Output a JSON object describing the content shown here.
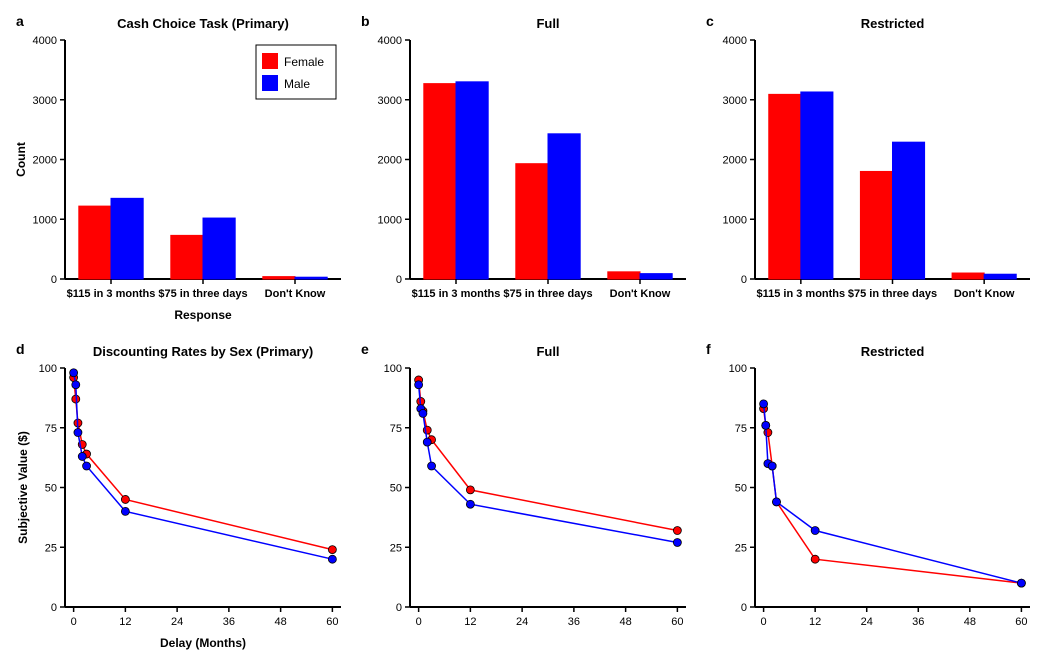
{
  "global": {
    "background_color": "#ffffff",
    "axis_color": "#000000",
    "tick_color": "#000000",
    "text_color": "#000000",
    "font_family": "Arial, sans-serif",
    "panel_label_fontsize": 14,
    "panel_label_fontweight": "bold",
    "title_fontsize": 13,
    "title_fontweight": "bold",
    "axis_label_fontsize": 12,
    "axis_label_fontweight": "bold",
    "tick_label_fontsize": 11,
    "series_colors": {
      "Female": "#ff0000",
      "Male": "#0000ff"
    },
    "marker_radius": 4,
    "line_width": 1.5,
    "axis_width": 2
  },
  "legend": {
    "items": [
      {
        "label": "Female",
        "color": "#ff0000"
      },
      {
        "label": "Male",
        "color": "#0000ff"
      }
    ],
    "fontsize": 12,
    "box_stroke": "#000000",
    "box_fill": "#ffffff",
    "swatch_size": 16,
    "panel": "a"
  },
  "bar_common": {
    "ylim": [
      0,
      4000
    ],
    "yticks": [
      0,
      1000,
      2000,
      3000,
      4000
    ],
    "categories": [
      "$115 in 3 months",
      "$75 in three days",
      "Don't Know"
    ],
    "xlabel": "Response",
    "ylabel": "Count",
    "bar_group_width": 0.7,
    "bar_gap": 0.0
  },
  "line_common": {
    "xlim": [
      -2,
      62
    ],
    "ylim": [
      0,
      100
    ],
    "xticks": [
      0,
      12,
      24,
      36,
      48,
      60
    ],
    "yticks": [
      0,
      25,
      50,
      75,
      100
    ],
    "xlabel": "Delay (Months)",
    "ylabel": "Subjective Value ($)",
    "x_points": [
      0,
      0.5,
      1,
      2,
      3,
      12,
      60
    ]
  },
  "panels": {
    "a": {
      "type": "bar",
      "panel_label": "a",
      "title": "Cash Choice Task (Primary)",
      "show_xlabel": true,
      "show_ylabel": true,
      "show_legend": true,
      "data": {
        "Female": [
          1220,
          730,
          40
        ],
        "Male": [
          1350,
          1020,
          30
        ]
      }
    },
    "b": {
      "type": "bar",
      "panel_label": "b",
      "title": "Full",
      "show_xlabel": false,
      "show_ylabel": false,
      "show_legend": false,
      "data": {
        "Female": [
          3270,
          1930,
          120
        ],
        "Male": [
          3300,
          2430,
          90
        ]
      }
    },
    "c": {
      "type": "bar",
      "panel_label": "c",
      "title": "Restricted",
      "show_xlabel": false,
      "show_ylabel": false,
      "show_legend": false,
      "data": {
        "Female": [
          3090,
          1800,
          100
        ],
        "Male": [
          3130,
          2290,
          80
        ]
      }
    },
    "d": {
      "type": "line",
      "panel_label": "d",
      "title": "Discounting Rates by Sex (Primary)",
      "show_xlabel": true,
      "show_ylabel": true,
      "data": {
        "Female": [
          96,
          87,
          77,
          68,
          64,
          45,
          24
        ],
        "Male": [
          98,
          93,
          73,
          63,
          59,
          40,
          20
        ]
      }
    },
    "e": {
      "type": "line",
      "panel_label": "e",
      "title": "Full",
      "show_xlabel": false,
      "show_ylabel": false,
      "data": {
        "Female": [
          95,
          86,
          82,
          74,
          70,
          49,
          32
        ],
        "Male": [
          93,
          83,
          81,
          69,
          59,
          43,
          27
        ]
      }
    },
    "f": {
      "type": "line",
      "panel_label": "f",
      "title": "Restricted",
      "show_xlabel": false,
      "show_ylabel": false,
      "data": {
        "Female": [
          83,
          76,
          73,
          59,
          44,
          20,
          10
        ],
        "Male": [
          85,
          76,
          60,
          59,
          44,
          32,
          10
        ]
      }
    }
  }
}
